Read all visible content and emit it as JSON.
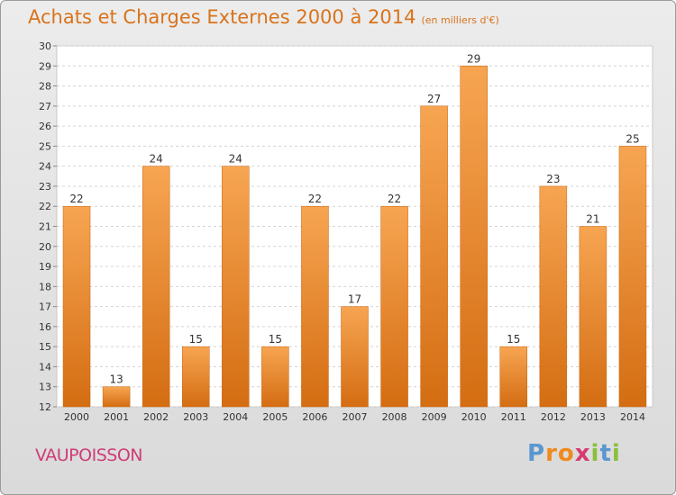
{
  "title": "Achats et Charges Externes 2000 à 2014",
  "subtitle": "(en milliers d'€)",
  "commune": "VAUPOISSON",
  "logo_text": "Proxiti",
  "colors": {
    "title": "#d9731b",
    "bar": "#f0882e",
    "commune": "#d03c77"
  },
  "chart_data": {
    "type": "bar",
    "title": "Achats et Charges Externes 2000 à 2014",
    "subtitle": "(en milliers d'€)",
    "categories": [
      "2000",
      "2001",
      "2002",
      "2003",
      "2004",
      "2005",
      "2006",
      "2007",
      "2008",
      "2009",
      "2010",
      "2011",
      "2012",
      "2013",
      "2014"
    ],
    "values": [
      22,
      13,
      24,
      15,
      24,
      15,
      22,
      17,
      22,
      27,
      29,
      15,
      23,
      21,
      25
    ],
    "ylim": [
      12,
      30
    ],
    "yticks": [
      12,
      13,
      14,
      15,
      16,
      17,
      18,
      19,
      20,
      21,
      22,
      23,
      24,
      25,
      26,
      27,
      28,
      29,
      30
    ],
    "grid": true,
    "data_labels": true
  }
}
